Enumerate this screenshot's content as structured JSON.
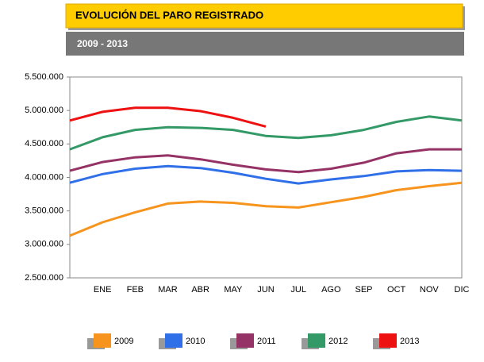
{
  "chart_data": {
    "type": "line",
    "title": "EVOLUCIÓN DEL PARO REGISTRADO",
    "subtitle": "2009 - 2013",
    "categories": [
      null,
      "ENE",
      "FEB",
      "MAR",
      "ABR",
      "MAY",
      "JUN",
      "JUL",
      "AGO",
      "SEP",
      "OCT",
      "NOV",
      "DIC"
    ],
    "series": [
      {
        "name": "2009",
        "color": "#f7941d",
        "values": [
          3130000,
          3330000,
          3480000,
          3610000,
          3640000,
          3620000,
          3570000,
          3550000,
          3630000,
          3710000,
          3810000,
          3870000,
          3920000
        ]
      },
      {
        "name": "2010",
        "color": "#2f6fe8",
        "values": [
          3920000,
          4050000,
          4130000,
          4170000,
          4140000,
          4070000,
          3980000,
          3910000,
          3970000,
          4020000,
          4090000,
          4110000,
          4100000
        ]
      },
      {
        "name": "2011",
        "color": "#963366",
        "values": [
          4100000,
          4230000,
          4300000,
          4330000,
          4270000,
          4190000,
          4120000,
          4080000,
          4130000,
          4220000,
          4360000,
          4420000,
          4420000
        ]
      },
      {
        "name": "2012",
        "color": "#339966",
        "values": [
          4420000,
          4600000,
          4710000,
          4750000,
          4740000,
          4710000,
          4620000,
          4590000,
          4630000,
          4710000,
          4830000,
          4910000,
          4850000
        ]
      },
      {
        "name": "2013",
        "color": "#ee1111",
        "values": [
          4850000,
          4980000,
          5040000,
          5040000,
          4990000,
          4890000,
          4760000,
          null,
          null,
          null,
          null,
          null,
          null
        ]
      }
    ],
    "ylim": [
      2500000,
      5500000
    ],
    "yticks": [
      {
        "value": 2500000,
        "label": "2.500.000"
      },
      {
        "value": 3000000,
        "label": "3.000.000"
      },
      {
        "value": 3500000,
        "label": "3.500.000"
      },
      {
        "value": 4000000,
        "label": "4.000.000"
      },
      {
        "value": 4500000,
        "label": "4.500.000"
      },
      {
        "value": 5000000,
        "label": "5.000.000"
      },
      {
        "value": 5500000,
        "label": "5.500.000"
      }
    ],
    "grid": false,
    "legend": "bottom"
  }
}
